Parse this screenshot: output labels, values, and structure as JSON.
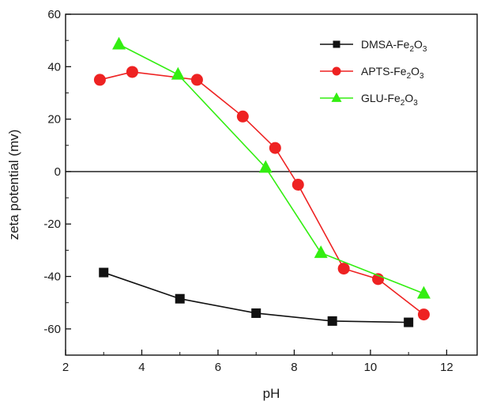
{
  "chart_data": {
    "type": "line",
    "title": "",
    "xlabel": "pH",
    "ylabel": "zeta potential (mv)",
    "xlim": [
      2,
      12.8
    ],
    "ylim": [
      -70,
      60
    ],
    "xticks": [
      2,
      4,
      6,
      8,
      10,
      12
    ],
    "yticks": [
      -60,
      -40,
      -20,
      0,
      20,
      40,
      60
    ],
    "zero_line": true,
    "grid": false,
    "legend_position": "top-right",
    "series": [
      {
        "name": "DMSA-Fe2O3",
        "legend": {
          "base": "DMSA-Fe",
          "sub1": "2",
          "mid": "O",
          "sub2": "3"
        },
        "color": "#111111",
        "marker": "square",
        "x": [
          3.0,
          5.0,
          7.0,
          9.0,
          11.0
        ],
        "y": [
          -38.5,
          -48.5,
          -54,
          -57,
          -57.5
        ]
      },
      {
        "name": "APTS-Fe2O3",
        "legend": {
          "base": "APTS-Fe",
          "sub1": "2",
          "mid": "O",
          "sub2": "3"
        },
        "color": "#ee2222",
        "marker": "circle",
        "x": [
          2.9,
          3.75,
          5.45,
          6.65,
          7.5,
          8.1,
          9.3,
          10.2,
          11.4
        ],
        "y": [
          35,
          38,
          35,
          21,
          9,
          -5,
          -37,
          -41,
          -54.5
        ]
      },
      {
        "name": "GLU-Fe2O3",
        "legend": {
          "base": "GLU-Fe",
          "sub1": "2",
          "mid": "O",
          "sub2": "3"
        },
        "color": "#33ee11",
        "marker": "triangle",
        "x": [
          3.4,
          4.95,
          7.25,
          8.7,
          11.4
        ],
        "y": [
          48.5,
          37,
          1.5,
          -31,
          -46.5
        ]
      }
    ]
  }
}
